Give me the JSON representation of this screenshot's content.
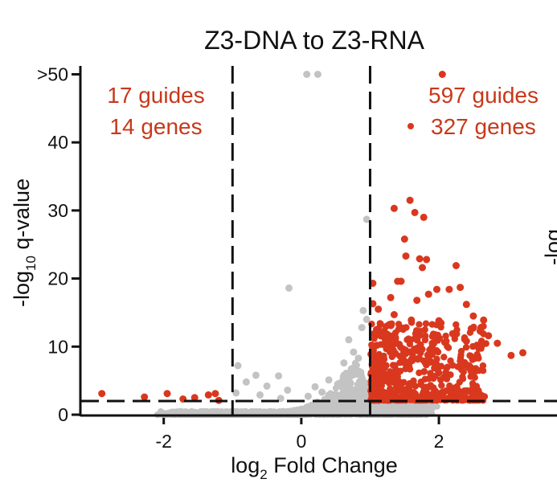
{
  "chart_data": {
    "type": "scatter",
    "title": "Z3-DNA to Z3-RNA",
    "xlabel_main": "log",
    "xlabel_sub": "2",
    "xlabel_rest": " Fold Change",
    "ylabel_main": "-log",
    "ylabel_sub": "10",
    "ylabel_rest": " q-value",
    "xlim": [
      -3.2,
      3.6
    ],
    "ylim": [
      0,
      51
    ],
    "xticks": [
      {
        "value": -2,
        "label": "-2"
      },
      {
        "value": 0,
        "label": "0"
      },
      {
        "value": 2,
        "label": "2"
      }
    ],
    "yticks": [
      {
        "value": 0,
        "label": "0"
      },
      {
        "value": 10,
        "label": "10"
      },
      {
        "value": 20,
        "label": "20"
      },
      {
        "value": 30,
        "label": "30"
      },
      {
        "value": 40,
        "label": "40"
      },
      {
        "value": 50,
        "label": ">50"
      }
    ],
    "thresholds": {
      "x": [
        -1,
        1
      ],
      "y": 2
    },
    "colors": {
      "significant": "#d9381e",
      "non_significant": "#c3c3c3",
      "annotation": "#c8381b"
    },
    "annotations": {
      "left_guides": "17 guides",
      "left_genes": "14 genes",
      "right_guides": "597 guides",
      "right_genes": "327 genes"
    },
    "cut_label": "-log",
    "series": [
      {
        "name": "non-significant",
        "points": [
          [
            0.08,
            50
          ],
          [
            0.24,
            50
          ],
          [
            0.95,
            28.7
          ],
          [
            -0.18,
            18.6
          ],
          [
            -0.92,
            7.2
          ],
          [
            -0.66,
            5.8
          ],
          [
            -0.33,
            5.7
          ],
          [
            0.69,
            11.0
          ],
          [
            0.76,
            9.2
          ],
          [
            0.83,
            8.3
          ],
          [
            0.62,
            7.6
          ],
          [
            0.72,
            6.3
          ],
          [
            0.88,
            12.8
          ],
          [
            0.9,
            15.3
          ],
          [
            0.95,
            14.0
          ],
          [
            -0.5,
            4.2
          ],
          [
            -0.2,
            3.6
          ],
          [
            0.2,
            4.1
          ],
          [
            0.4,
            5.1
          ],
          [
            0.55,
            4.6
          ],
          [
            -0.8,
            4.8
          ],
          [
            -0.95,
            3.2
          ],
          [
            0.3,
            3.3
          ],
          [
            -0.6,
            2.9
          ],
          [
            0.1,
            2.7
          ],
          [
            0.5,
            3.0
          ],
          [
            0.8,
            3.7
          ],
          [
            -0.3,
            2.4
          ],
          [
            0.7,
            2.6
          ]
        ]
      },
      {
        "name": "significant",
        "points": [
          [
            2.05,
            50
          ],
          [
            1.58,
            31.5
          ],
          [
            1.35,
            30.3
          ],
          [
            1.65,
            29.7
          ],
          [
            1.78,
            29.0
          ],
          [
            1.5,
            25.8
          ],
          [
            1.72,
            22.9
          ],
          [
            1.82,
            22.8
          ],
          [
            1.76,
            21.6
          ],
          [
            1.52,
            23.3
          ],
          [
            2.25,
            21.9
          ],
          [
            1.4,
            19.6
          ],
          [
            1.45,
            19.6
          ],
          [
            1.04,
            19.3
          ],
          [
            1.97,
            18.4
          ],
          [
            2.15,
            18.4
          ],
          [
            2.31,
            18.7
          ],
          [
            1.04,
            16.3
          ],
          [
            1.3,
            17.2
          ],
          [
            1.68,
            16.8
          ],
          [
            1.85,
            17.7
          ],
          [
            2.4,
            16.2
          ],
          [
            1.12,
            15.5
          ],
          [
            2.5,
            14.5
          ],
          [
            2.65,
            13.9
          ],
          [
            2.72,
            11.6
          ],
          [
            2.85,
            10.5
          ],
          [
            3.05,
            8.7
          ],
          [
            3.22,
            9.1
          ],
          [
            2.6,
            12.3
          ],
          [
            2.4,
            10.8
          ],
          [
            2.2,
            11.9
          ],
          [
            2.0,
            13.8
          ],
          [
            1.9,
            9.8
          ],
          [
            1.6,
            13.9
          ],
          [
            1.35,
            14.7
          ],
          [
            1.15,
            13.3
          ],
          [
            1.25,
            11.8
          ],
          [
            1.1,
            10.2
          ],
          [
            -2.9,
            3.1
          ],
          [
            -2.28,
            2.6
          ],
          [
            -1.95,
            3.1
          ],
          [
            -1.72,
            2.3
          ],
          [
            -1.55,
            2.5
          ],
          [
            -1.35,
            2.9
          ],
          [
            -1.25,
            3.1
          ],
          [
            -1.2,
            2.1
          ]
        ]
      }
    ]
  }
}
